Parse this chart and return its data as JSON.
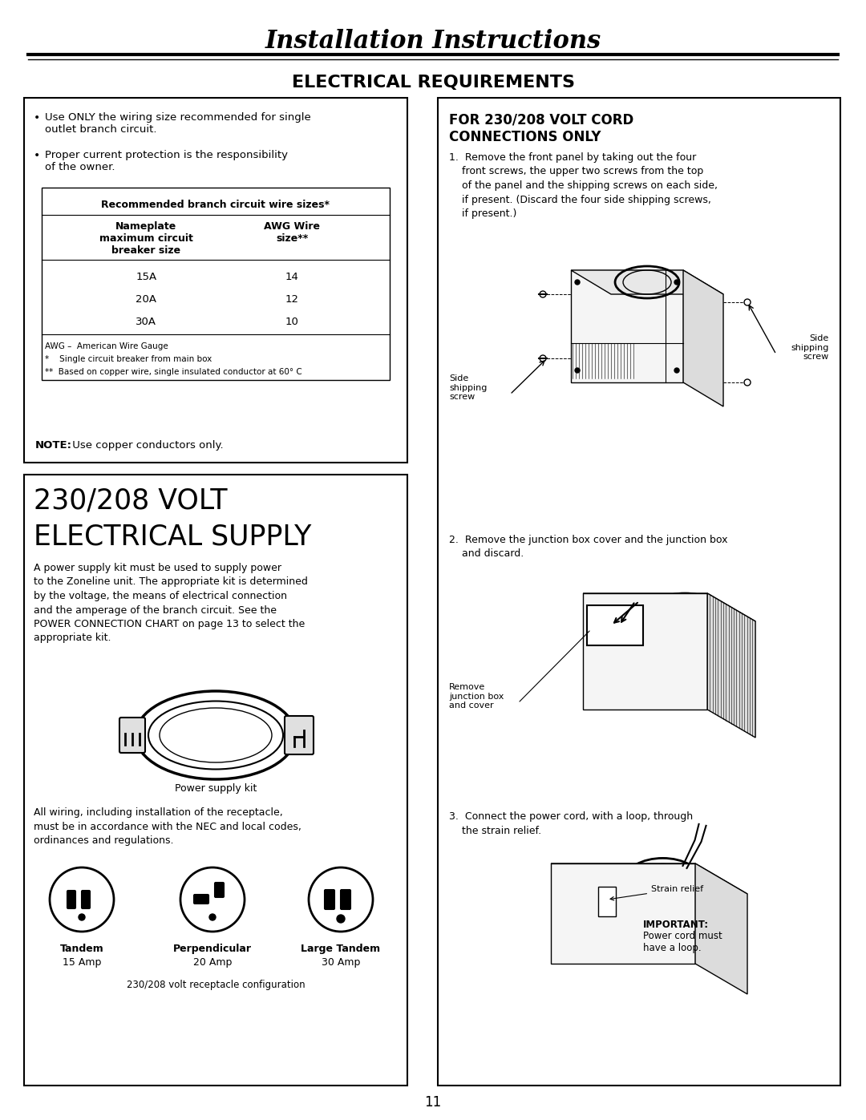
{
  "title": "Installation Instructions",
  "subtitle": "ELECTRICAL REQUIREMENTS",
  "bg_color": "#ffffff",
  "text_color": "#000000",
  "page_number": "11",
  "left_box1": {
    "bullet1": "Use ONLY the wiring size recommended for single\noutlet branch circuit.",
    "bullet2": "Proper current protection is the responsibility\nof the owner.",
    "table_title": "Recommended branch circuit wire sizes*",
    "col1_header": "Nameplate\nmaximum circuit\nbreaker size",
    "col2_header": "AWG Wire\nsize**",
    "rows": [
      [
        "15A",
        "14"
      ],
      [
        "20A",
        "12"
      ],
      [
        "30A",
        "10"
      ]
    ],
    "fn1": "AWG –  American Wire Gauge",
    "fn2": "*    Single circuit breaker from main box",
    "fn3": "**  Based on copper wire, single insulated conductor at 60° C",
    "note_bold": "NOTE:",
    "note_rest": " Use copper conductors only."
  },
  "left_box2": {
    "title1": "230/208 VOLT",
    "title2": "ELECTRICAL SUPPLY",
    "body": "A power supply kit must be used to supply power\nto the Zoneline unit. The appropriate kit is determined\nby the voltage, the means of electrical connection\nand the amperage of the branch circuit. See the\nPOWER CONNECTION CHART on page 13 to select the\nappropriate kit.",
    "kit_label": "Power supply kit",
    "wiring": "All wiring, including installation of the receptacle,\nmust be in accordance with the NEC and local codes,\nordinances and regulations.",
    "rec_labels": [
      "Tandem",
      "Perpendicular",
      "Large Tandem"
    ],
    "rec_amps": [
      "15 Amp",
      "20 Amp",
      "30 Amp"
    ],
    "rec_footer": "230/208 volt receptacle configuration"
  },
  "right_box": {
    "title1": "FOR 230/208 VOLT CORD",
    "title2": "CONNECTIONS ONLY",
    "step1": "1.  Remove the front panel by taking out the four\n    front screws, the upper two screws from the top\n    of the panel and the shipping screws on each side,\n    if present. (Discard the four side shipping screws,\n    if present.)",
    "lbl_left_screw": "Side\nshipping\nscrew",
    "lbl_right_screw": "Side\nshipping\nscrew",
    "step2": "2.  Remove the junction box cover and the junction box\n    and discard.",
    "lbl_remove": "Remove\njunction box\nand cover",
    "step3": "3.  Connect the power cord, with a loop, through\n    the strain relief.",
    "lbl_strain": "Strain relief",
    "lbl_important_bold": "IMPORTANT:",
    "lbl_important_rest": "\nPower cord must\nhave a loop."
  }
}
